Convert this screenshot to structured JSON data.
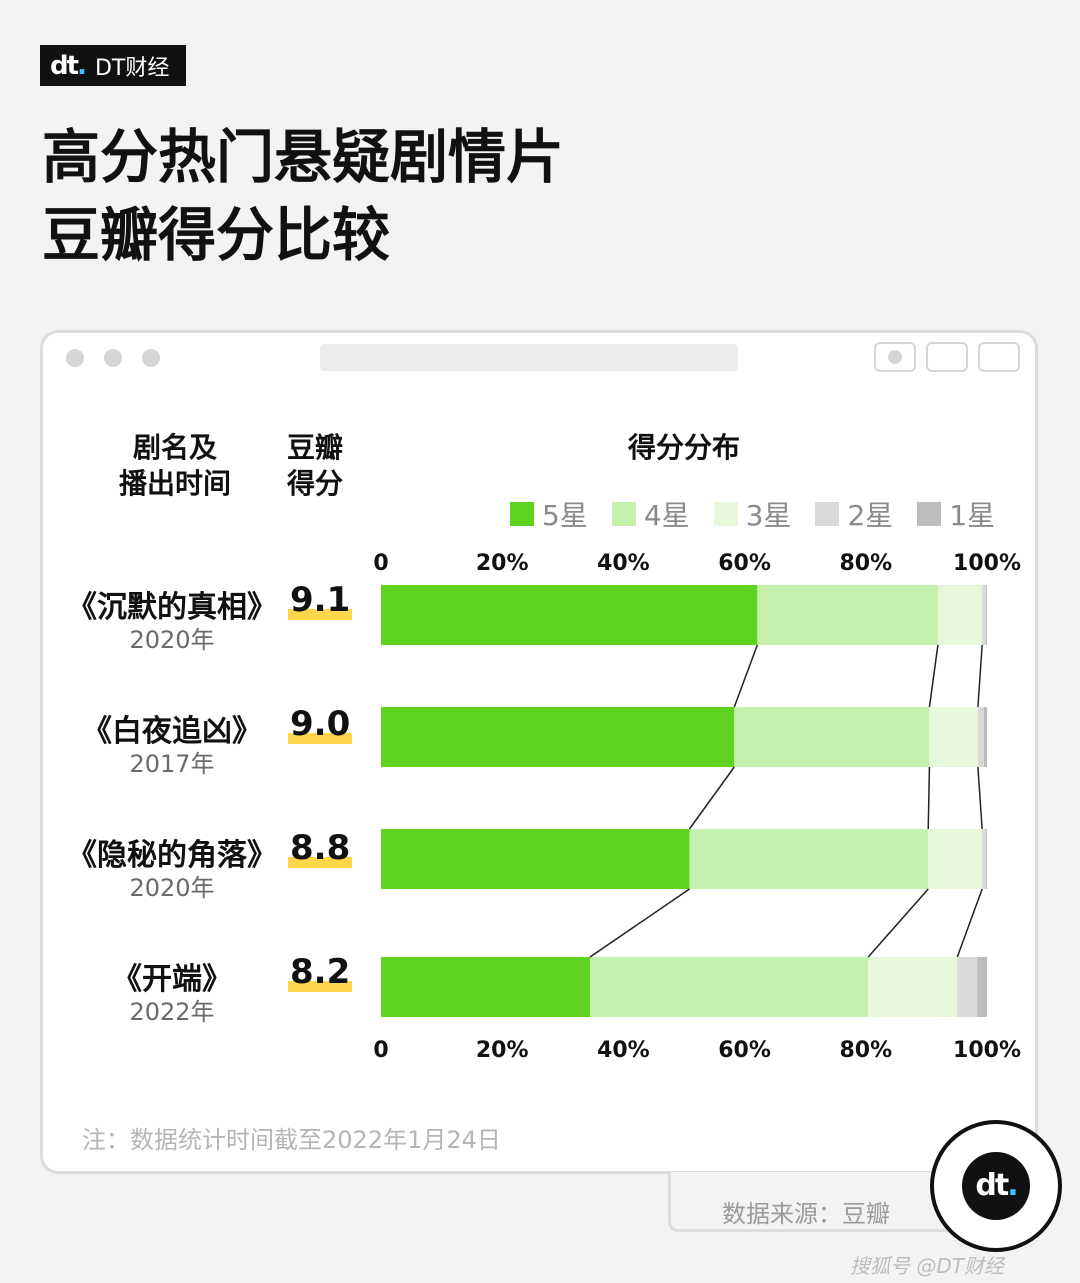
{
  "brand": {
    "name": "DT财经",
    "mark": "dt"
  },
  "title_lines": [
    "高分热门悬疑剧情片",
    "豆瓣得分比较"
  ],
  "headers": {
    "drama": [
      "剧名及",
      "播出时间"
    ],
    "score": [
      "豆瓣",
      "得分"
    ],
    "dist": "得分分布"
  },
  "dramas": [
    {
      "name": "《沉默的真相》",
      "year": "2020年",
      "score": "9.1"
    },
    {
      "name": "《白夜追凶》",
      "year": "2017年",
      "score": "9.0"
    },
    {
      "name": "《隐秘的角落》",
      "year": "2020年",
      "score": "8.8"
    },
    {
      "name": "《开端》",
      "year": "2022年",
      "score": "8.2"
    }
  ],
  "note": "注：数据统计时间截至2022年1月24日",
  "source": "数据来源：豆瓣",
  "footer": "搜狐号 @DT财经",
  "watermark_text": "dt.财经",
  "colors": {
    "star5": "#5dd31f",
    "star4": "#c4efac",
    "star3": "#e6f7dc",
    "star2": "#d9d9d9",
    "star1": "#bdbdbd",
    "accent_blue": "#33c8ff",
    "highlight": "#ffd64a"
  },
  "chart_data": {
    "type": "bar",
    "orientation": "horizontal",
    "stacked": true,
    "categories": [
      "《沉默的真相》",
      "《白夜追凶》",
      "《隐秘的角落》",
      "《开端》"
    ],
    "series": [
      {
        "name": "5星",
        "values": [
          62.1,
          58.3,
          50.9,
          34.5
        ]
      },
      {
        "name": "4星",
        "values": [
          29.8,
          32.2,
          39.4,
          45.9
        ]
      },
      {
        "name": "3星",
        "values": [
          7.3,
          8.0,
          8.9,
          14.7
        ]
      },
      {
        "name": "2星",
        "values": [
          0.6,
          1.0,
          0.6,
          3.3
        ]
      },
      {
        "name": "1星",
        "values": [
          0.2,
          0.5,
          0.2,
          1.6
        ]
      }
    ],
    "x_ticks": [
      "0",
      "20%",
      "40%",
      "60%",
      "80%",
      "100%"
    ],
    "xlim": [
      0,
      100
    ],
    "legend": [
      "5星",
      "4星",
      "3星",
      "2星",
      "1星"
    ],
    "legend_position": "top-right",
    "connector_lines": true,
    "grid": false
  }
}
